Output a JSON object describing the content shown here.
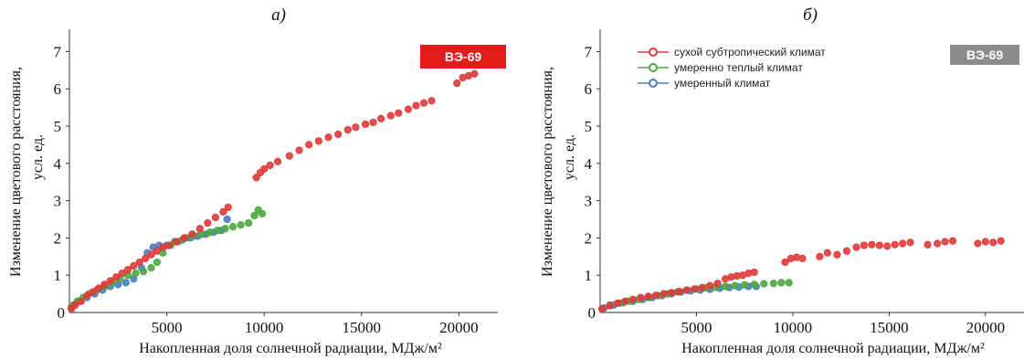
{
  "chart_data": [
    {
      "panel_label": "a)",
      "type": "scatter",
      "badge": {
        "text": "ВЭ-69",
        "color": "#e31b1b"
      },
      "xlabel": "Накопленная доля солнечной радиации, МДж/м²",
      "ylabel": [
        "Изменение цветового  расстояния,",
        "усл. ед."
      ],
      "xlim": [
        0,
        22000
      ],
      "ylim": [
        0,
        7.5
      ],
      "xticks": [
        5000,
        10000,
        15000,
        20000
      ],
      "yticks": [
        1,
        2,
        3,
        4,
        5,
        6,
        7
      ],
      "origin_label": "0",
      "legend": [],
      "series": [
        {
          "color": "#e03a3a",
          "points": [
            [
              100,
              0.1
            ],
            [
              300,
              0.2
            ],
            [
              600,
              0.3
            ],
            [
              900,
              0.45
            ],
            [
              1200,
              0.55
            ],
            [
              1500,
              0.65
            ],
            [
              1800,
              0.75
            ],
            [
              2100,
              0.85
            ],
            [
              2400,
              0.95
            ],
            [
              2700,
              1.05
            ],
            [
              3000,
              1.15
            ],
            [
              3300,
              1.25
            ],
            [
              3600,
              1.35
            ],
            [
              3900,
              1.45
            ],
            [
              4200,
              1.55
            ],
            [
              4500,
              1.65
            ],
            [
              4800,
              1.75
            ],
            [
              5100,
              1.8
            ],
            [
              5500,
              1.9
            ],
            [
              5900,
              2.0
            ],
            [
              6300,
              2.1
            ],
            [
              6700,
              2.25
            ],
            [
              7100,
              2.4
            ],
            [
              7500,
              2.55
            ],
            [
              7900,
              2.7
            ],
            [
              8150,
              2.82
            ],
            [
              9600,
              3.62
            ],
            [
              9800,
              3.75
            ],
            [
              10000,
              3.85
            ],
            [
              10300,
              3.95
            ],
            [
              10700,
              4.05
            ],
            [
              11300,
              4.2
            ],
            [
              11800,
              4.35
            ],
            [
              12300,
              4.5
            ],
            [
              12800,
              4.6
            ],
            [
              13300,
              4.7
            ],
            [
              13800,
              4.78
            ],
            [
              14300,
              4.9
            ],
            [
              14700,
              4.97
            ],
            [
              15200,
              5.05
            ],
            [
              15600,
              5.1
            ],
            [
              16000,
              5.2
            ],
            [
              16500,
              5.28
            ],
            [
              16900,
              5.35
            ],
            [
              17400,
              5.45
            ],
            [
              17800,
              5.55
            ],
            [
              18200,
              5.62
            ],
            [
              18600,
              5.68
            ],
            [
              19900,
              6.15
            ],
            [
              20200,
              6.3
            ],
            [
              20500,
              6.35
            ],
            [
              20800,
              6.4
            ]
          ]
        },
        {
          "color": "#4aaa3c",
          "points": [
            [
              100,
              0.15
            ],
            [
              400,
              0.3
            ],
            [
              700,
              0.4
            ],
            [
              1000,
              0.5
            ],
            [
              1400,
              0.6
            ],
            [
              1800,
              0.7
            ],
            [
              2200,
              0.8
            ],
            [
              2600,
              0.9
            ],
            [
              3000,
              1.0
            ],
            [
              3400,
              1.05
            ],
            [
              3800,
              1.1
            ],
            [
              4200,
              1.2
            ],
            [
              4500,
              1.35
            ],
            [
              4800,
              1.6
            ],
            [
              5200,
              1.8
            ],
            [
              5600,
              1.9
            ],
            [
              6000,
              2.0
            ],
            [
              6400,
              2.05
            ],
            [
              6800,
              2.1
            ],
            [
              7200,
              2.15
            ],
            [
              7600,
              2.2
            ],
            [
              8000,
              2.25
            ],
            [
              8400,
              2.3
            ],
            [
              8800,
              2.35
            ],
            [
              9200,
              2.4
            ],
            [
              9500,
              2.6
            ],
            [
              9700,
              2.75
            ],
            [
              9900,
              2.65
            ]
          ]
        },
        {
          "color": "#4a7fc1",
          "points": [
            [
              200,
              0.2
            ],
            [
              500,
              0.3
            ],
            [
              900,
              0.4
            ],
            [
              1300,
              0.5
            ],
            [
              1700,
              0.6
            ],
            [
              2100,
              0.7
            ],
            [
              2500,
              0.75
            ],
            [
              2900,
              0.8
            ],
            [
              3300,
              0.9
            ],
            [
              3700,
              1.2
            ],
            [
              4000,
              1.6
            ],
            [
              4300,
              1.75
            ],
            [
              4600,
              1.8
            ],
            [
              5000,
              1.8
            ],
            [
              5400,
              1.9
            ],
            [
              5800,
              1.95
            ],
            [
              6200,
              2.0
            ],
            [
              6600,
              2.05
            ],
            [
              7000,
              2.1
            ],
            [
              7400,
              2.15
            ],
            [
              7800,
              2.2
            ],
            [
              8100,
              2.5
            ]
          ]
        }
      ]
    },
    {
      "panel_label": "б)",
      "type": "scatter",
      "badge": {
        "text": "ВЭ-69",
        "color": "#8c8c8c"
      },
      "xlabel": "Накопленная доля солнечной радиации, МДж/м²",
      "ylabel": [
        "Изменение цветового  расстояния,",
        "усл. ед."
      ],
      "xlim": [
        0,
        22000
      ],
      "ylim": [
        0,
        7.5
      ],
      "xticks": [
        5000,
        10000,
        15000,
        20000
      ],
      "yticks": [
        1,
        2,
        3,
        4,
        5,
        6,
        7
      ],
      "origin_label": "0",
      "legend": [
        {
          "label": "сухой субтропический климат",
          "color": "#e03a3a"
        },
        {
          "label": "умеренно теплый климат",
          "color": "#4aaa3c"
        },
        {
          "label": "умеренный климат",
          "color": "#4a7fc1"
        }
      ],
      "series": [
        {
          "name": "сухой субтропический климат",
          "color": "#e03a3a",
          "points": [
            [
              100,
              0.1
            ],
            [
              500,
              0.18
            ],
            [
              900,
              0.25
            ],
            [
              1300,
              0.3
            ],
            [
              1700,
              0.35
            ],
            [
              2100,
              0.4
            ],
            [
              2500,
              0.43
            ],
            [
              2900,
              0.46
            ],
            [
              3300,
              0.5
            ],
            [
              3700,
              0.53
            ],
            [
              4100,
              0.56
            ],
            [
              4500,
              0.6
            ],
            [
              4900,
              0.63
            ],
            [
              5300,
              0.67
            ],
            [
              5700,
              0.72
            ],
            [
              6100,
              0.78
            ],
            [
              6500,
              0.9
            ],
            [
              6800,
              0.95
            ],
            [
              7100,
              0.98
            ],
            [
              7400,
              1.0
            ],
            [
              7700,
              1.05
            ],
            [
              8000,
              1.08
            ],
            [
              9600,
              1.35
            ],
            [
              9900,
              1.45
            ],
            [
              10200,
              1.48
            ],
            [
              10500,
              1.45
            ],
            [
              11400,
              1.5
            ],
            [
              11800,
              1.6
            ],
            [
              12300,
              1.55
            ],
            [
              12800,
              1.65
            ],
            [
              13300,
              1.75
            ],
            [
              13700,
              1.8
            ],
            [
              14100,
              1.82
            ],
            [
              14500,
              1.8
            ],
            [
              14900,
              1.78
            ],
            [
              15300,
              1.82
            ],
            [
              15700,
              1.85
            ],
            [
              16100,
              1.88
            ],
            [
              17000,
              1.82
            ],
            [
              17500,
              1.85
            ],
            [
              17900,
              1.9
            ],
            [
              18300,
              1.92
            ],
            [
              19600,
              1.85
            ],
            [
              20000,
              1.9
            ],
            [
              20400,
              1.88
            ],
            [
              20800,
              1.92
            ]
          ]
        },
        {
          "name": "умеренно теплый климат",
          "color": "#4aaa3c",
          "points": [
            [
              100,
              0.1
            ],
            [
              500,
              0.2
            ],
            [
              1000,
              0.25
            ],
            [
              1500,
              0.3
            ],
            [
              2000,
              0.35
            ],
            [
              2500,
              0.4
            ],
            [
              3000,
              0.45
            ],
            [
              3500,
              0.5
            ],
            [
              4000,
              0.55
            ],
            [
              4500,
              0.6
            ],
            [
              5000,
              0.63
            ],
            [
              5500,
              0.66
            ],
            [
              6000,
              0.68
            ],
            [
              6500,
              0.7
            ],
            [
              7000,
              0.72
            ],
            [
              7500,
              0.74
            ],
            [
              8000,
              0.75
            ],
            [
              8500,
              0.77
            ],
            [
              9000,
              0.78
            ],
            [
              9400,
              0.8
            ],
            [
              9800,
              0.8
            ]
          ]
        },
        {
          "name": "умеренный климат",
          "color": "#4a7fc1",
          "points": [
            [
              200,
              0.12
            ],
            [
              700,
              0.2
            ],
            [
              1200,
              0.26
            ],
            [
              1700,
              0.3
            ],
            [
              2200,
              0.35
            ],
            [
              2700,
              0.4
            ],
            [
              3200,
              0.45
            ],
            [
              3700,
              0.5
            ],
            [
              4200,
              0.55
            ],
            [
              4700,
              0.58
            ],
            [
              5200,
              0.6
            ],
            [
              5700,
              0.62
            ],
            [
              6200,
              0.65
            ],
            [
              6700,
              0.67
            ],
            [
              7200,
              0.68
            ],
            [
              7700,
              0.7
            ],
            [
              8100,
              0.7
            ]
          ]
        }
      ]
    }
  ]
}
